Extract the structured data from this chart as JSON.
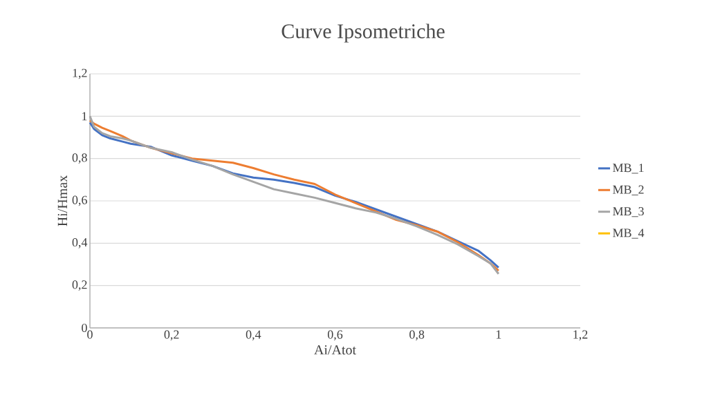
{
  "chart_data": {
    "type": "line",
    "title": "Curve Ipsometriche",
    "xlabel": "Ai/Atot",
    "ylabel": "Hi/Hmax",
    "x": [
      0,
      0.01,
      0.03,
      0.05,
      0.08,
      0.1,
      0.15,
      0.2,
      0.25,
      0.3,
      0.35,
      0.4,
      0.45,
      0.5,
      0.55,
      0.6,
      0.65,
      0.7,
      0.75,
      0.8,
      0.85,
      0.9,
      0.95,
      0.98,
      1.0
    ],
    "series": [
      {
        "name": "MB_1",
        "color": "#4472c4",
        "values": [
          0.97,
          0.94,
          0.91,
          0.895,
          0.88,
          0.87,
          0.855,
          0.815,
          0.79,
          0.765,
          0.73,
          0.71,
          0.7,
          0.685,
          0.665,
          0.625,
          0.595,
          0.56,
          0.525,
          0.49,
          0.455,
          0.41,
          0.365,
          0.32,
          0.285
        ]
      },
      {
        "name": "MB_2",
        "color": "#ed7d31",
        "values": [
          0.98,
          0.965,
          0.945,
          0.93,
          0.905,
          0.885,
          0.85,
          0.825,
          0.8,
          0.79,
          0.78,
          0.755,
          0.725,
          0.7,
          0.68,
          0.63,
          0.59,
          0.55,
          0.51,
          0.485,
          0.455,
          0.405,
          0.345,
          0.305,
          0.27
        ]
      },
      {
        "name": "MB_3",
        "color": "#a5a5a5",
        "values": [
          1.0,
          0.95,
          0.92,
          0.905,
          0.895,
          0.885,
          0.85,
          0.83,
          0.795,
          0.765,
          0.725,
          0.69,
          0.655,
          0.635,
          0.615,
          0.59,
          0.565,
          0.545,
          0.515,
          0.48,
          0.44,
          0.395,
          0.34,
          0.305,
          0.255
        ]
      },
      {
        "name": "MB_4",
        "color": "#ffc000",
        "values": [
          null,
          null,
          null,
          null,
          null,
          null,
          null,
          null,
          null,
          null,
          null,
          null,
          null,
          null,
          null,
          null,
          null,
          null,
          null,
          null,
          null,
          null,
          null,
          null,
          null
        ]
      }
    ],
    "xlim": [
      0,
      1.2
    ],
    "ylim": [
      0,
      1.2
    ],
    "xticks": [
      0,
      {
        "value": 0.2,
        "label": "0,2"
      },
      {
        "value": 0.4,
        "label": "0,4"
      },
      {
        "value": 0.6,
        "label": "0,6"
      },
      {
        "value": 0.8,
        "label": "0,8"
      },
      1,
      {
        "value": 1.2,
        "label": "1,2"
      }
    ],
    "yticks": [
      0,
      {
        "value": 0.2,
        "label": "0,2"
      },
      {
        "value": 0.4,
        "label": "0,4"
      },
      {
        "value": 0.6,
        "label": "0,6"
      },
      {
        "value": 0.8,
        "label": "0,8"
      },
      1,
      {
        "value": 1.2,
        "label": "1,2"
      }
    ],
    "grid": "y",
    "legend": "right",
    "marker": "none",
    "line_style": "solid"
  }
}
